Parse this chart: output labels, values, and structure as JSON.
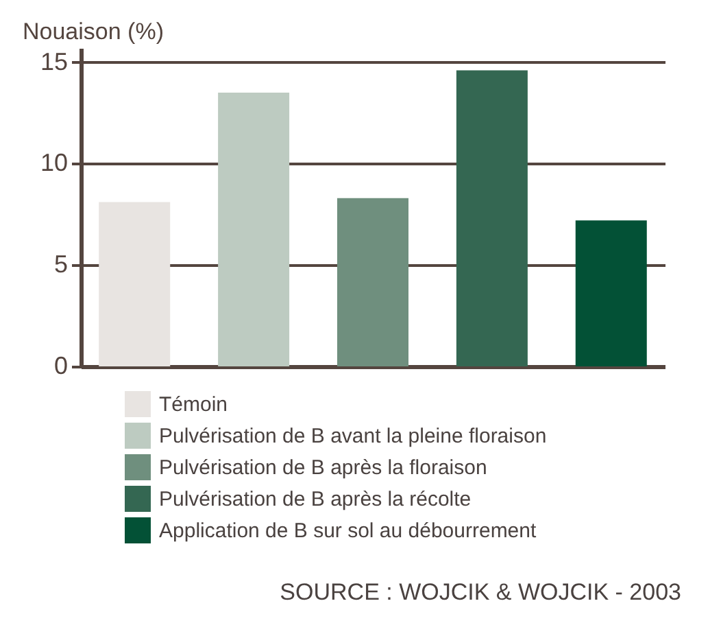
{
  "chart_data": {
    "type": "bar",
    "ylabel": "Nouaison (%)",
    "categories": [
      null,
      null,
      null,
      null,
      null
    ],
    "series": [
      {
        "name": "Témoin",
        "color": "#e8e4e1",
        "values": [
          8.1,
          null,
          null,
          null,
          null
        ]
      },
      {
        "name": "Pulvérisation de B avant la pleine floraison",
        "color": "#bdcbc1",
        "values": [
          null,
          13.5,
          null,
          null,
          null
        ]
      },
      {
        "name": "Pulvérisation de B après la floraison",
        "color": "#6f8f7e",
        "values": [
          null,
          null,
          8.3,
          null,
          null
        ]
      },
      {
        "name": "Pulvérisation de B après la récolte",
        "color": "#346752",
        "values": [
          null,
          null,
          null,
          14.6,
          null
        ]
      },
      {
        "name": "Application de B sur sol au débourrement",
        "color": "#035136",
        "values": [
          null,
          null,
          null,
          null,
          7.2
        ]
      }
    ],
    "ylim": [
      0,
      15.7
    ],
    "yticks": [
      0,
      5,
      10,
      15
    ],
    "grid": "y",
    "legend": "bottom",
    "tick_labels": "y",
    "annotations": [
      "SOURCE : WOJCIK & WOJCIK - 2003"
    ]
  }
}
